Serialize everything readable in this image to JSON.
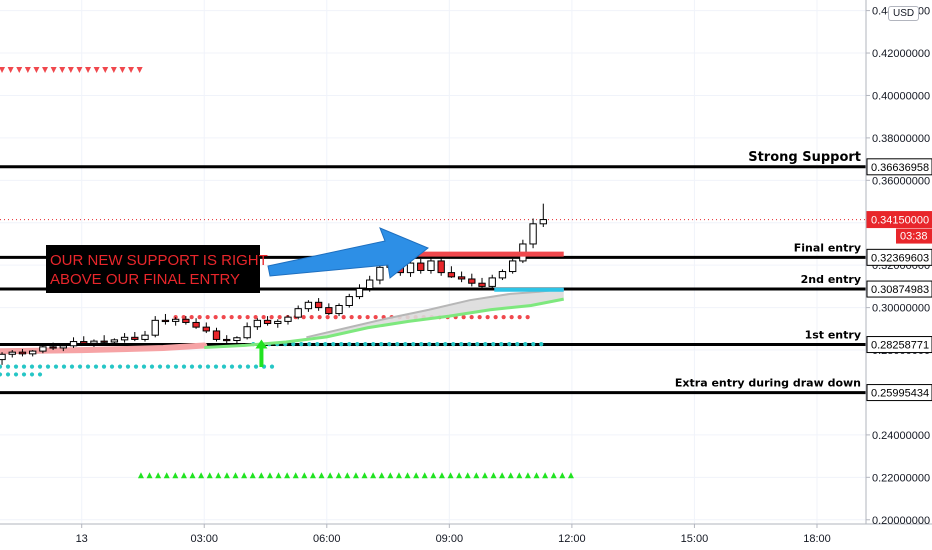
{
  "symbol": {
    "currency": "USD"
  },
  "countdown": "03:38",
  "colors": {
    "up_candle": "#ffffff",
    "down_candle": "#e8262b",
    "red_marks": "#f0484d",
    "green_marks": "#21e321",
    "teal_dots": "#26c6c6",
    "blue_arrow": "#2d8fe6",
    "note_bg": "#000000",
    "note_text": "#e8262b"
  },
  "annotations": {
    "note_line1": "OUR NEW SUPPORT IS RIGHT",
    "note_line2": "ABOVE OUR FINAL ENTRY",
    "strong_support": "Strong Support"
  },
  "chart_data": {
    "type": "candlestick",
    "y_axis": {
      "range": [
        0.198,
        0.445
      ],
      "ticks": [
        "0.20000000",
        "0.22000000",
        "0.24000000",
        "0.26000000",
        "0.28000000",
        "0.30000000",
        "0.32000000",
        "0.34000000",
        "0.36000000",
        "0.38000000",
        "0.40000000",
        "0.42000000",
        "0.44000000"
      ],
      "tick_values": [
        0.2,
        0.22,
        0.24,
        0.26,
        0.28,
        0.3,
        0.32,
        0.34,
        0.36,
        0.38,
        0.4,
        0.42,
        0.44
      ]
    },
    "x_axis": {
      "range": [
        -2,
        19.2
      ],
      "ticks": [
        {
          "label": "13",
          "x": 0
        },
        {
          "label": "03:00",
          "x": 3
        },
        {
          "label": "06:00",
          "x": 6
        },
        {
          "label": "09:00",
          "x": 9
        },
        {
          "label": "12:00",
          "x": 12
        },
        {
          "label": "15:00",
          "x": 15
        },
        {
          "label": "18:00",
          "x": 18
        }
      ]
    },
    "last_price": {
      "value": 0.3415,
      "label": "0.34150000"
    },
    "levels": [
      {
        "value": 0.36636958,
        "label": "0.36636958",
        "name": "Strong Support"
      },
      {
        "value": 0.32369603,
        "label": "0.32369603",
        "name": "Final entry"
      },
      {
        "value": 0.30874983,
        "label": "0.30874983",
        "name": "2nd entry"
      },
      {
        "value": 0.28258771,
        "label": "0.28258771",
        "name": "1st entry"
      },
      {
        "value": 0.25995434,
        "label": "0.25995434",
        "name": "Extra entry during draw down"
      }
    ],
    "candles": [
      {
        "o": 0.2755,
        "h": 0.279,
        "l": 0.273,
        "c": 0.278
      },
      {
        "o": 0.278,
        "h": 0.28,
        "l": 0.2765,
        "c": 0.279
      },
      {
        "o": 0.279,
        "h": 0.2805,
        "l": 0.277,
        "c": 0.2782
      },
      {
        "o": 0.2782,
        "h": 0.28,
        "l": 0.277,
        "c": 0.2795
      },
      {
        "o": 0.2795,
        "h": 0.283,
        "l": 0.2785,
        "c": 0.2815
      },
      {
        "o": 0.2815,
        "h": 0.2835,
        "l": 0.28,
        "c": 0.281
      },
      {
        "o": 0.281,
        "h": 0.283,
        "l": 0.2795,
        "c": 0.282
      },
      {
        "o": 0.282,
        "h": 0.286,
        "l": 0.281,
        "c": 0.284
      },
      {
        "o": 0.284,
        "h": 0.2865,
        "l": 0.2825,
        "c": 0.2832
      },
      {
        "o": 0.2832,
        "h": 0.285,
        "l": 0.2815,
        "c": 0.2842
      },
      {
        "o": 0.2842,
        "h": 0.287,
        "l": 0.283,
        "c": 0.2838
      },
      {
        "o": 0.2838,
        "h": 0.2855,
        "l": 0.2825,
        "c": 0.2848
      },
      {
        "o": 0.2848,
        "h": 0.288,
        "l": 0.2835,
        "c": 0.286
      },
      {
        "o": 0.286,
        "h": 0.2885,
        "l": 0.2842,
        "c": 0.285
      },
      {
        "o": 0.285,
        "h": 0.289,
        "l": 0.284,
        "c": 0.287
      },
      {
        "o": 0.287,
        "h": 0.296,
        "l": 0.286,
        "c": 0.294
      },
      {
        "o": 0.294,
        "h": 0.297,
        "l": 0.292,
        "c": 0.2935
      },
      {
        "o": 0.2935,
        "h": 0.2955,
        "l": 0.2915,
        "c": 0.2945
      },
      {
        "o": 0.2945,
        "h": 0.296,
        "l": 0.292,
        "c": 0.293
      },
      {
        "o": 0.293,
        "h": 0.295,
        "l": 0.29,
        "c": 0.2908
      },
      {
        "o": 0.2908,
        "h": 0.293,
        "l": 0.288,
        "c": 0.289
      },
      {
        "o": 0.289,
        "h": 0.2905,
        "l": 0.284,
        "c": 0.285
      },
      {
        "o": 0.285,
        "h": 0.287,
        "l": 0.283,
        "c": 0.2845
      },
      {
        "o": 0.2845,
        "h": 0.2865,
        "l": 0.2828,
        "c": 0.2858
      },
      {
        "o": 0.2858,
        "h": 0.293,
        "l": 0.285,
        "c": 0.291
      },
      {
        "o": 0.291,
        "h": 0.295,
        "l": 0.2895,
        "c": 0.294
      },
      {
        "o": 0.294,
        "h": 0.296,
        "l": 0.2915,
        "c": 0.2925
      },
      {
        "o": 0.2925,
        "h": 0.2945,
        "l": 0.2905,
        "c": 0.2935
      },
      {
        "o": 0.2935,
        "h": 0.2965,
        "l": 0.292,
        "c": 0.2955
      },
      {
        "o": 0.2955,
        "h": 0.301,
        "l": 0.2945,
        "c": 0.2995
      },
      {
        "o": 0.2995,
        "h": 0.3035,
        "l": 0.298,
        "c": 0.3025
      },
      {
        "o": 0.3025,
        "h": 0.3045,
        "l": 0.2985,
        "c": 0.3
      },
      {
        "o": 0.3,
        "h": 0.302,
        "l": 0.2965,
        "c": 0.2972
      },
      {
        "o": 0.2972,
        "h": 0.302,
        "l": 0.296,
        "c": 0.301
      },
      {
        "o": 0.301,
        "h": 0.3065,
        "l": 0.3,
        "c": 0.3052
      },
      {
        "o": 0.3052,
        "h": 0.311,
        "l": 0.304,
        "c": 0.309
      },
      {
        "o": 0.309,
        "h": 0.315,
        "l": 0.3075,
        "c": 0.313
      },
      {
        "o": 0.313,
        "h": 0.3215,
        "l": 0.311,
        "c": 0.319
      },
      {
        "o": 0.319,
        "h": 0.324,
        "l": 0.317,
        "c": 0.3225
      },
      {
        "o": 0.3225,
        "h": 0.325,
        "l": 0.315,
        "c": 0.3165
      },
      {
        "o": 0.3165,
        "h": 0.322,
        "l": 0.3145,
        "c": 0.321
      },
      {
        "o": 0.321,
        "h": 0.323,
        "l": 0.316,
        "c": 0.3175
      },
      {
        "o": 0.3175,
        "h": 0.3235,
        "l": 0.316,
        "c": 0.322
      },
      {
        "o": 0.322,
        "h": 0.324,
        "l": 0.315,
        "c": 0.3165
      },
      {
        "o": 0.3165,
        "h": 0.3195,
        "l": 0.314,
        "c": 0.3145
      },
      {
        "o": 0.3145,
        "h": 0.317,
        "l": 0.312,
        "c": 0.3135
      },
      {
        "o": 0.3135,
        "h": 0.316,
        "l": 0.31,
        "c": 0.3115
      },
      {
        "o": 0.3115,
        "h": 0.314,
        "l": 0.3085,
        "c": 0.31
      },
      {
        "o": 0.31,
        "h": 0.3155,
        "l": 0.309,
        "c": 0.314
      },
      {
        "o": 0.314,
        "h": 0.318,
        "l": 0.313,
        "c": 0.317
      },
      {
        "o": 0.317,
        "h": 0.323,
        "l": 0.316,
        "c": 0.322
      },
      {
        "o": 0.322,
        "h": 0.332,
        "l": 0.321,
        "c": 0.33
      },
      {
        "o": 0.33,
        "h": 0.342,
        "l": 0.328,
        "c": 0.3395
      },
      {
        "o": 0.3395,
        "h": 0.349,
        "l": 0.338,
        "c": 0.3415
      }
    ],
    "red_dots": {
      "value": 0.2955,
      "x_from": 2.3,
      "x_to": 11.1
    },
    "teal_dots_upper": {
      "value": 0.2828,
      "x_from": 4.2,
      "x_to": 11.3
    },
    "teal_dots_lower": [
      {
        "value": 0.2722,
        "x_from": -2,
        "x_to": 4.7
      },
      {
        "value": 0.2685,
        "x_from": -2,
        "x_to": -1.0
      }
    ],
    "sell_triangles": {
      "value": 0.412,
      "x_from": -1.95,
      "x_to": 1.55
    },
    "buy_triangles": {
      "value": 0.221,
      "x_from": 1.45,
      "x_to": 12.0
    },
    "moving_average": [
      [
        -2,
        0.2785
      ],
      [
        0,
        0.279
      ],
      [
        2,
        0.28
      ],
      [
        3,
        0.2812
      ],
      [
        4,
        0.2822
      ],
      [
        5,
        0.2838
      ],
      [
        6,
        0.2862
      ],
      [
        7,
        0.2905
      ],
      [
        8,
        0.2935
      ],
      [
        9,
        0.296
      ],
      [
        10,
        0.299
      ],
      [
        11,
        0.301
      ],
      [
        11.8,
        0.304
      ]
    ],
    "moving_average_upper": [
      [
        5.5,
        0.286
      ],
      [
        6.5,
        0.2905
      ],
      [
        7.5,
        0.295
      ],
      [
        8.5,
        0.299
      ],
      [
        9.5,
        0.3035
      ],
      [
        10.5,
        0.3065
      ],
      [
        11.2,
        0.3075
      ],
      [
        11.8,
        0.3088
      ]
    ],
    "resistance_zone": {
      "value": 0.3252,
      "x_from": 8.2,
      "x_to": 11.8
    },
    "support_zone": {
      "value": 0.3084,
      "x_from": 10.1,
      "x_to": 11.8
    },
    "buy_arrow": {
      "x": 4.4,
      "y_from": 0.272,
      "y_to": 0.284
    }
  }
}
